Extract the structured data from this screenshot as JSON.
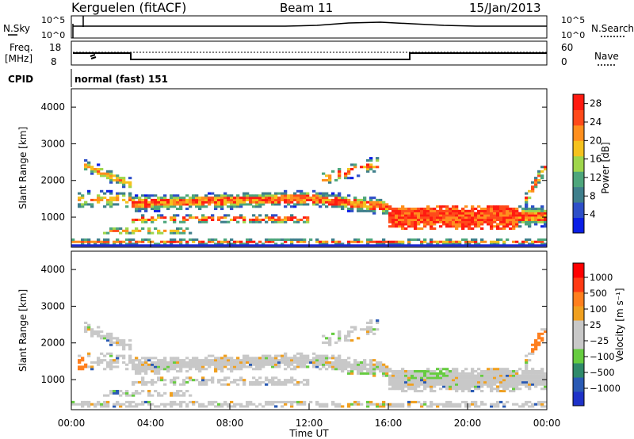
{
  "header": {
    "station": "Kerguelen (fitACF)",
    "beam": "Beam 11",
    "date": "15/Jan/2013"
  },
  "noise_panel": {
    "left_label": "N.Sky",
    "right_label": "N.Search",
    "ticks_left": [
      "10^5",
      "10^0"
    ],
    "ticks_right": [
      "10^5",
      "10^0"
    ]
  },
  "freq_panel": {
    "left_label_1": "Freq.",
    "left_label_2": "[MHz]",
    "right_label": "Nave",
    "ticks_left": [
      "18",
      "8"
    ],
    "ticks_right": [
      "60",
      "0"
    ]
  },
  "cpid": {
    "label": "CPID",
    "value": "normal (fast) 151"
  },
  "colors": {
    "power_scale": [
      "#0a1ee6",
      "#2e4fc8",
      "#3f7f8c",
      "#4ea67c",
      "#9fd64c",
      "#f5c21e",
      "#ff8f1e",
      "#ff4a1a",
      "#ff1a10"
    ],
    "velocity_scale": [
      "#1e32c8",
      "#2a5ab4",
      "#2f8a6a",
      "#66cc40",
      "#c8c8c8",
      "#c8c8c8",
      "#f0a020",
      "#ff7f1e",
      "#ff3a14",
      "#ff0000"
    ]
  },
  "chart_data": [
    {
      "type": "heatmap",
      "name": "power",
      "ylabel": "Slant Range [km]",
      "yticks": [
        "1000",
        "2000",
        "3000",
        "4000"
      ],
      "ylim": [
        180,
        4500
      ],
      "xlim": [
        0,
        24
      ],
      "colorbar": {
        "label": "Power [dB]",
        "ticks": [
          "4",
          "8",
          "12",
          "16",
          "20",
          "24",
          "28"
        ],
        "range": [
          0,
          30
        ]
      }
    },
    {
      "type": "heatmap",
      "name": "velocity",
      "ylabel": "Slant Range [km]",
      "yticks": [
        "1000",
        "2000",
        "3000",
        "4000"
      ],
      "ylim": [
        180,
        4500
      ],
      "xlim": [
        0,
        24
      ],
      "xticks": [
        "00:00",
        "04:00",
        "08:00",
        "12:00",
        "16:00",
        "20:00",
        "00:00"
      ],
      "xlabel": "Time UT",
      "colorbar": {
        "label": "Velocity [m s⁻¹]",
        "ticks": [
          "1000",
          "500",
          "100",
          "25",
          "−25",
          "−100",
          "−500",
          "−1000"
        ]
      }
    }
  ]
}
